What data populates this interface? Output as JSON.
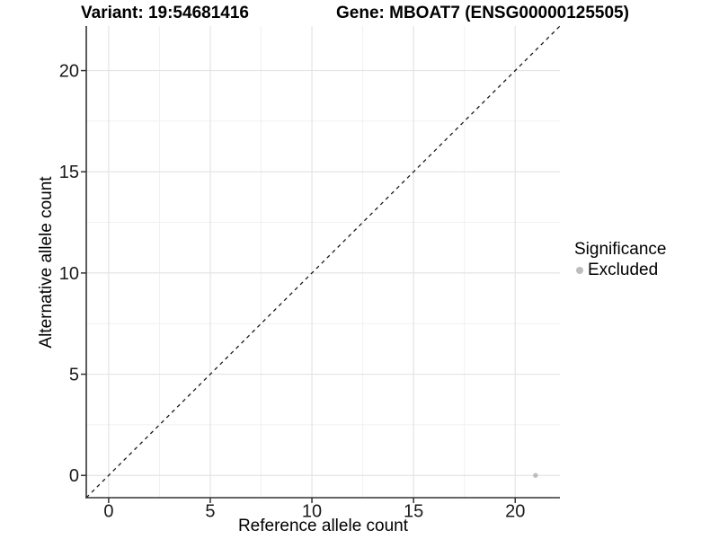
{
  "header": {
    "variant_title": "Variant: 19:54681416",
    "gene_title": "Gene: MBOAT7 (ENSG00000125505)"
  },
  "axes": {
    "x_label": "Reference allele count",
    "y_label": "Alternative allele count"
  },
  "legend": {
    "title": "Significance",
    "items": [
      {
        "label": "Excluded",
        "color": "#bdbdbd"
      }
    ]
  },
  "colors": {
    "background": "#ffffff",
    "grid_major": "#e4e4e4",
    "grid_minor": "#f1f1f1",
    "axis_line": "#333333",
    "tick_text": "#1a1a1a",
    "identity_line": "#1a1a1a",
    "point": "#bdbdbd"
  },
  "chart_data": {
    "type": "scatter",
    "title": "Variant: 19:54681416   Gene: MBOAT7 (ENSG00000125505)",
    "xlabel": "Reference allele count",
    "ylabel": "Alternative allele count",
    "xlim": [
      -1.1,
      22.2
    ],
    "ylim": [
      -1.1,
      22.2
    ],
    "x_ticks": [
      0,
      5,
      10,
      15,
      20
    ],
    "y_ticks": [
      0,
      5,
      10,
      15,
      20
    ],
    "x_minor_ticks": [
      2.5,
      7.5,
      12.5,
      17.5
    ],
    "y_minor_ticks": [
      2.5,
      7.5,
      12.5,
      17.5
    ],
    "grid": true,
    "legend_position": "right",
    "series": [
      {
        "name": "Excluded",
        "points": [
          {
            "x": 21,
            "y": 0
          }
        ]
      }
    ],
    "reference_line": {
      "type": "identity",
      "slope": 1,
      "intercept": 0,
      "style": "dashed"
    }
  }
}
